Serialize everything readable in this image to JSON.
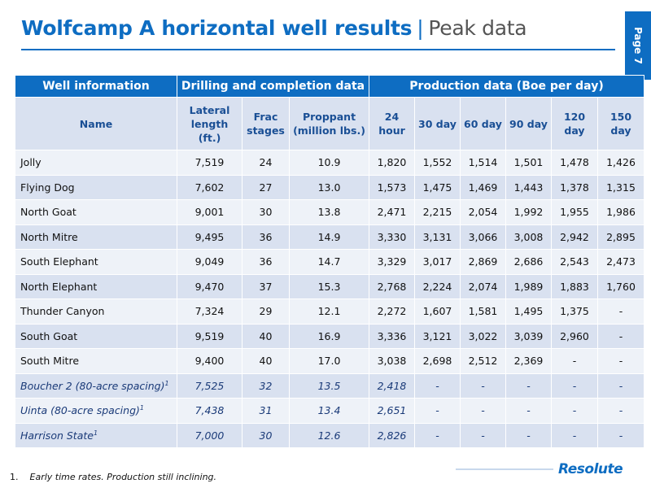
{
  "title": {
    "bold": "Wolfcamp A horizontal well results",
    "separator": "|",
    "subtitle": "Peak data"
  },
  "page_tab": "Page 7",
  "table": {
    "group_headers": [
      "Well information",
      "Drilling and completion data",
      "Production data (Boe per day)"
    ],
    "column_headers": [
      "Name",
      "Lateral length (ft.)",
      "Frac stages",
      "Proppant (million lbs.)",
      "24 hour",
      "30 day",
      "60 day",
      "90 day",
      "120 day",
      "150 day"
    ],
    "rows": [
      {
        "name": "Jolly",
        "sup": "",
        "cells": [
          "7,519",
          "24",
          "10.9",
          "1,820",
          "1,552",
          "1,514",
          "1,501",
          "1,478",
          "1,426"
        ]
      },
      {
        "name": "Flying Dog",
        "sup": "",
        "cells": [
          "7,602",
          "27",
          "13.0",
          "1,573",
          "1,475",
          "1,469",
          "1,443",
          "1,378",
          "1,315"
        ]
      },
      {
        "name": "North Goat",
        "sup": "",
        "cells": [
          "9,001",
          "30",
          "13.8",
          "2,471",
          "2,215",
          "2,054",
          "1,992",
          "1,955",
          "1,986"
        ]
      },
      {
        "name": "North Mitre",
        "sup": "",
        "cells": [
          "9,495",
          "36",
          "14.9",
          "3,330",
          "3,131",
          "3,066",
          "3,008",
          "2,942",
          "2,895"
        ]
      },
      {
        "name": "South Elephant",
        "sup": "",
        "cells": [
          "9,049",
          "36",
          "14.7",
          "3,329",
          "3,017",
          "2,869",
          "2,686",
          "2,543",
          "2,473"
        ]
      },
      {
        "name": "North Elephant",
        "sup": "",
        "cells": [
          "9,470",
          "37",
          "15.3",
          "2,768",
          "2,224",
          "2,074",
          "1,989",
          "1,883",
          "1,760"
        ]
      },
      {
        "name": "Thunder Canyon",
        "sup": "",
        "cells": [
          "7,324",
          "29",
          "12.1",
          "2,272",
          "1,607",
          "1,581",
          "1,495",
          "1,375",
          "-"
        ]
      },
      {
        "name": "South Goat",
        "sup": "",
        "cells": [
          "9,519",
          "40",
          "16.9",
          "3,336",
          "3,121",
          "3,022",
          "3,039",
          "2,960",
          "-"
        ]
      },
      {
        "name": "South Mitre",
        "sup": "",
        "cells": [
          "9,400",
          "40",
          "17.0",
          "3,038",
          "2,698",
          "2,512",
          "2,369",
          "-",
          "-"
        ]
      },
      {
        "name": "Boucher 2 (80-acre spacing)",
        "sup": "1",
        "cells": [
          "7,525",
          "32",
          "13.5",
          "2,418",
          "-",
          "-",
          "-",
          "-",
          "-"
        ]
      },
      {
        "name": "Uinta (80-acre spacing)",
        "sup": "1",
        "cells": [
          "7,438",
          "31",
          "13.4",
          "2,651",
          "-",
          "-",
          "-",
          "-",
          "-"
        ]
      },
      {
        "name": "Harrison State",
        "sup": "1",
        "cells": [
          "7,000",
          "30",
          "12.6",
          "2,826",
          "-",
          "-",
          "-",
          "-",
          "-"
        ]
      }
    ]
  },
  "footnote": {
    "number": "1.",
    "text": "Early time rates. Production still inclining."
  },
  "logo": "Resolute",
  "colors": {
    "accent": "#0e6dc2",
    "row_light": "#eef2f8",
    "row_dark": "#d9e1f0",
    "header_text": "#1a4f95"
  }
}
